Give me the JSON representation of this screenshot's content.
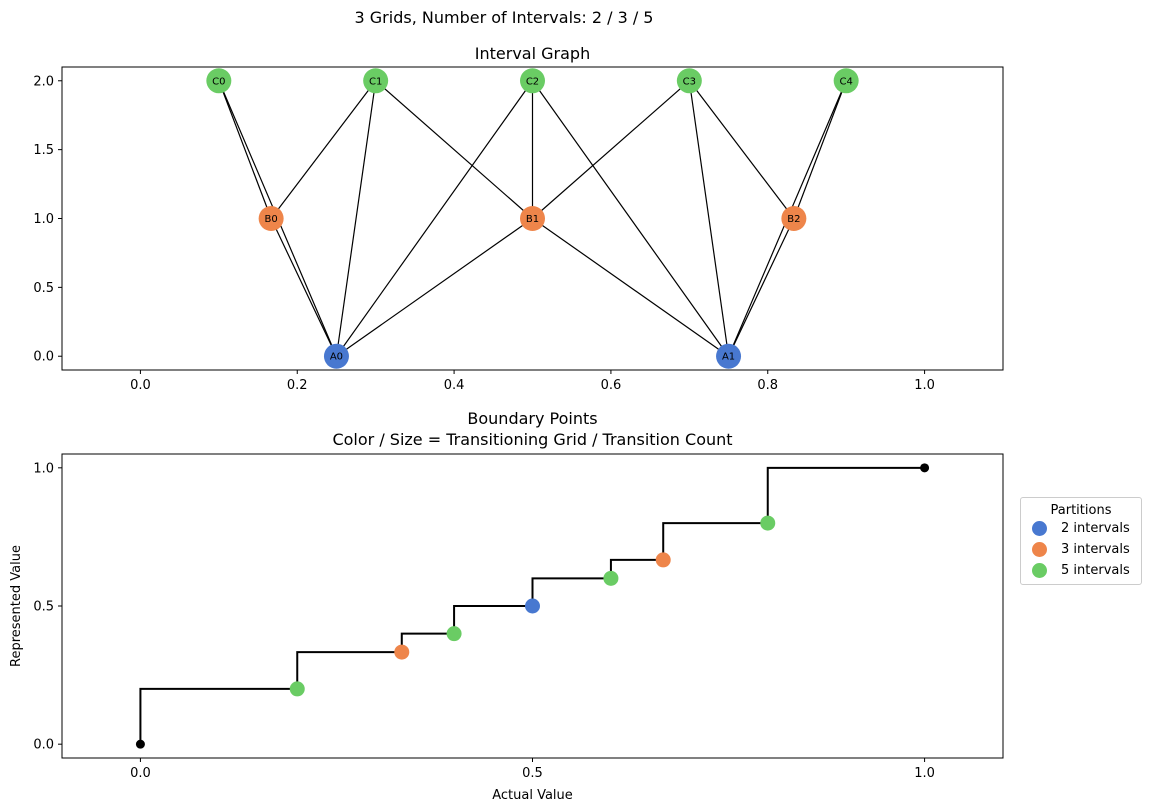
{
  "figure": {
    "title": "3 Grids, Number of Intervals: 2 / 3 / 5"
  },
  "chart_data": [
    {
      "type": "scatter",
      "title": "Interval Graph",
      "xlabel": "",
      "ylabel": "",
      "xlim": [
        -0.1,
        1.1
      ],
      "ylim": [
        -0.1,
        2.1
      ],
      "xticks": [
        0.0,
        0.2,
        0.4,
        0.6,
        0.8,
        1.0
      ],
      "xtick_labels": [
        "0.0",
        "0.2",
        "0.4",
        "0.6",
        "0.8",
        "1.0"
      ],
      "yticks": [
        0.0,
        0.5,
        1.0,
        1.5,
        2.0
      ],
      "ytick_labels": [
        "0.0",
        "0.5",
        "1.0",
        "1.5",
        "2.0"
      ],
      "grid": false,
      "nodes": [
        {
          "id": "A0",
          "x": 0.25,
          "y": 0,
          "color": "#4878d0"
        },
        {
          "id": "A1",
          "x": 0.75,
          "y": 0,
          "color": "#4878d0"
        },
        {
          "id": "B0",
          "x": 0.1667,
          "y": 1,
          "color": "#ee854a"
        },
        {
          "id": "B1",
          "x": 0.5,
          "y": 1,
          "color": "#ee854a"
        },
        {
          "id": "B2",
          "x": 0.8333,
          "y": 1,
          "color": "#ee854a"
        },
        {
          "id": "C0",
          "x": 0.1,
          "y": 2,
          "color": "#6acc64"
        },
        {
          "id": "C1",
          "x": 0.3,
          "y": 2,
          "color": "#6acc64"
        },
        {
          "id": "C2",
          "x": 0.5,
          "y": 2,
          "color": "#6acc64"
        },
        {
          "id": "C3",
          "x": 0.7,
          "y": 2,
          "color": "#6acc64"
        },
        {
          "id": "C4",
          "x": 0.9,
          "y": 2,
          "color": "#6acc64"
        }
      ],
      "edges": [
        [
          "A0",
          "B0"
        ],
        [
          "A0",
          "B1"
        ],
        [
          "A0",
          "C0"
        ],
        [
          "A0",
          "C1"
        ],
        [
          "A0",
          "C2"
        ],
        [
          "A1",
          "B1"
        ],
        [
          "A1",
          "B2"
        ],
        [
          "A1",
          "C2"
        ],
        [
          "A1",
          "C3"
        ],
        [
          "A1",
          "C4"
        ],
        [
          "B0",
          "C0"
        ],
        [
          "B0",
          "C1"
        ],
        [
          "B1",
          "C1"
        ],
        [
          "B1",
          "C2"
        ],
        [
          "B1",
          "C3"
        ],
        [
          "B2",
          "C3"
        ],
        [
          "B2",
          "C4"
        ]
      ]
    },
    {
      "type": "line",
      "title": "Boundary Points",
      "subtitle": "Color / Size = Transitioning Grid / Transition Count",
      "xlabel": "Actual Value",
      "ylabel": "Represented Value",
      "xlim": [
        -0.1,
        1.1
      ],
      "ylim": [
        -0.05,
        1.05
      ],
      "xticks": [
        0.0,
        0.5,
        1.0
      ],
      "xtick_labels": [
        "0.0",
        "0.5",
        "1.0"
      ],
      "yticks": [
        0.0,
        0.5,
        1.0
      ],
      "ytick_labels": [
        "0.0",
        "0.5",
        "1.0"
      ],
      "grid": false,
      "step_line": {
        "color": "#000000",
        "x": [
          0,
          0.2,
          0.3333,
          0.4,
          0.5,
          0.6,
          0.6667,
          0.8,
          1.0
        ],
        "y": [
          0,
          0.2,
          0.3333,
          0.4,
          0.5,
          0.6,
          0.6667,
          0.8,
          1.0
        ]
      },
      "endpoints": [
        {
          "x": 0,
          "y": 0,
          "color": "#000000"
        },
        {
          "x": 1,
          "y": 1,
          "color": "#000000"
        }
      ],
      "legend": {
        "title": "Partitions",
        "placement": "outside-right"
      },
      "series": [
        {
          "name": "2 intervals",
          "color": "#4878d0",
          "points": [
            {
              "x": 0.5,
              "y": 0.5
            }
          ]
        },
        {
          "name": "3 intervals",
          "color": "#ee854a",
          "points": [
            {
              "x": 0.3333,
              "y": 0.3333
            },
            {
              "x": 0.6667,
              "y": 0.6667
            }
          ]
        },
        {
          "name": "5 intervals",
          "color": "#6acc64",
          "points": [
            {
              "x": 0.2,
              "y": 0.2
            },
            {
              "x": 0.4,
              "y": 0.4
            },
            {
              "x": 0.6,
              "y": 0.6
            },
            {
              "x": 0.8,
              "y": 0.8
            }
          ]
        }
      ]
    }
  ]
}
